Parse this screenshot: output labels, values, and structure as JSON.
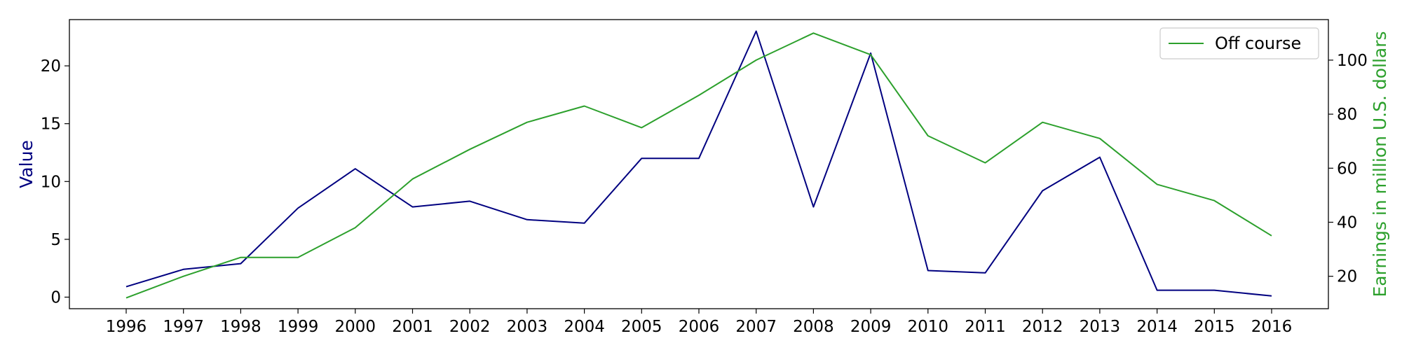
{
  "chart_data": {
    "type": "line",
    "title": "",
    "categories": [
      "1996",
      "1997",
      "1998",
      "1999",
      "2000",
      "2001",
      "2002",
      "2003",
      "2004",
      "2005",
      "2006",
      "2007",
      "2008",
      "2009",
      "2010",
      "2011",
      "2012",
      "2013",
      "2014",
      "2015",
      "2016"
    ],
    "x_ticks": [
      "1996",
      "1997",
      "1998",
      "1999",
      "2000",
      "2001",
      "2002",
      "2003",
      "2004",
      "2005",
      "2006",
      "2007",
      "2008",
      "2009",
      "2010",
      "2011",
      "2012",
      "2013",
      "2014",
      "2015",
      "2016"
    ],
    "y_left": {
      "label": "Value",
      "color": "#000080",
      "ylim": [
        -1,
        24
      ],
      "ticks": [
        0,
        5,
        10,
        15,
        20
      ]
    },
    "y_right": {
      "label": "Earnings in million U.S. dollars",
      "color": "#2ca02c",
      "ylim": [
        8,
        115
      ],
      "ticks": [
        20,
        40,
        60,
        80,
        100
      ]
    },
    "series": [
      {
        "axis": "left",
        "color": "#000080",
        "values": [
          0.9,
          2.4,
          2.9,
          7.7,
          11.1,
          7.8,
          8.3,
          6.7,
          6.4,
          12.0,
          12.0,
          23.0,
          7.8,
          21.1,
          2.3,
          2.1,
          9.2,
          12.1,
          0.6,
          0.6,
          0.1
        ]
      },
      {
        "name": "Off course",
        "axis": "right",
        "color": "#2ca02c",
        "values": [
          12,
          20,
          27,
          27,
          38,
          56,
          67,
          77,
          83,
          75,
          87,
          100,
          110,
          102,
          72,
          62,
          77,
          71,
          54,
          48,
          35
        ]
      }
    ],
    "legend": {
      "position": "top-right",
      "entries": [
        "Off course"
      ]
    },
    "grid": false
  }
}
